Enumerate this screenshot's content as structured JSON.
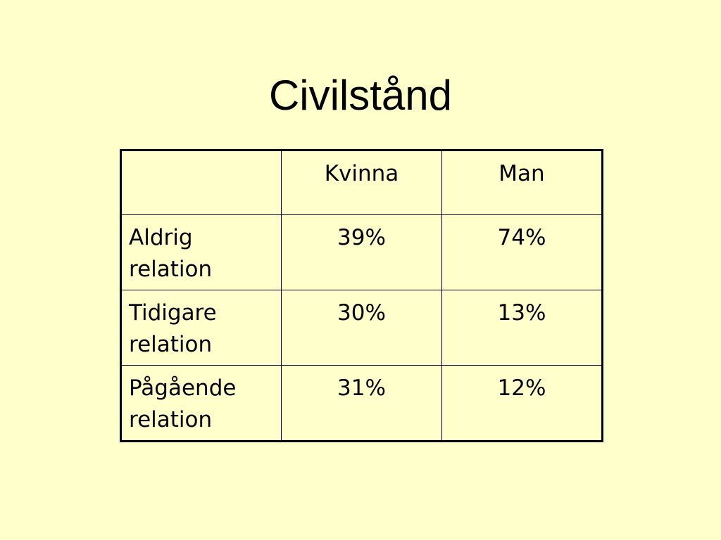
{
  "slide": {
    "title": "Civilstånd",
    "background_color": "#FFFFCC",
    "text_color": "#000000"
  },
  "table": {
    "columns": [
      "",
      "Kvinna",
      "Man"
    ],
    "rows": [
      {
        "label_line1": "Aldrig",
        "label_line2": "relation",
        "kvinna": "39%",
        "man": "74%"
      },
      {
        "label_line1": "Tidigare",
        "label_line2": "relation",
        "kvinna": "30%",
        "man": "13%"
      },
      {
        "label_line1": "Pågående",
        "label_line2": "relation",
        "kvinna": "31%",
        "man": "12%"
      }
    ]
  }
}
